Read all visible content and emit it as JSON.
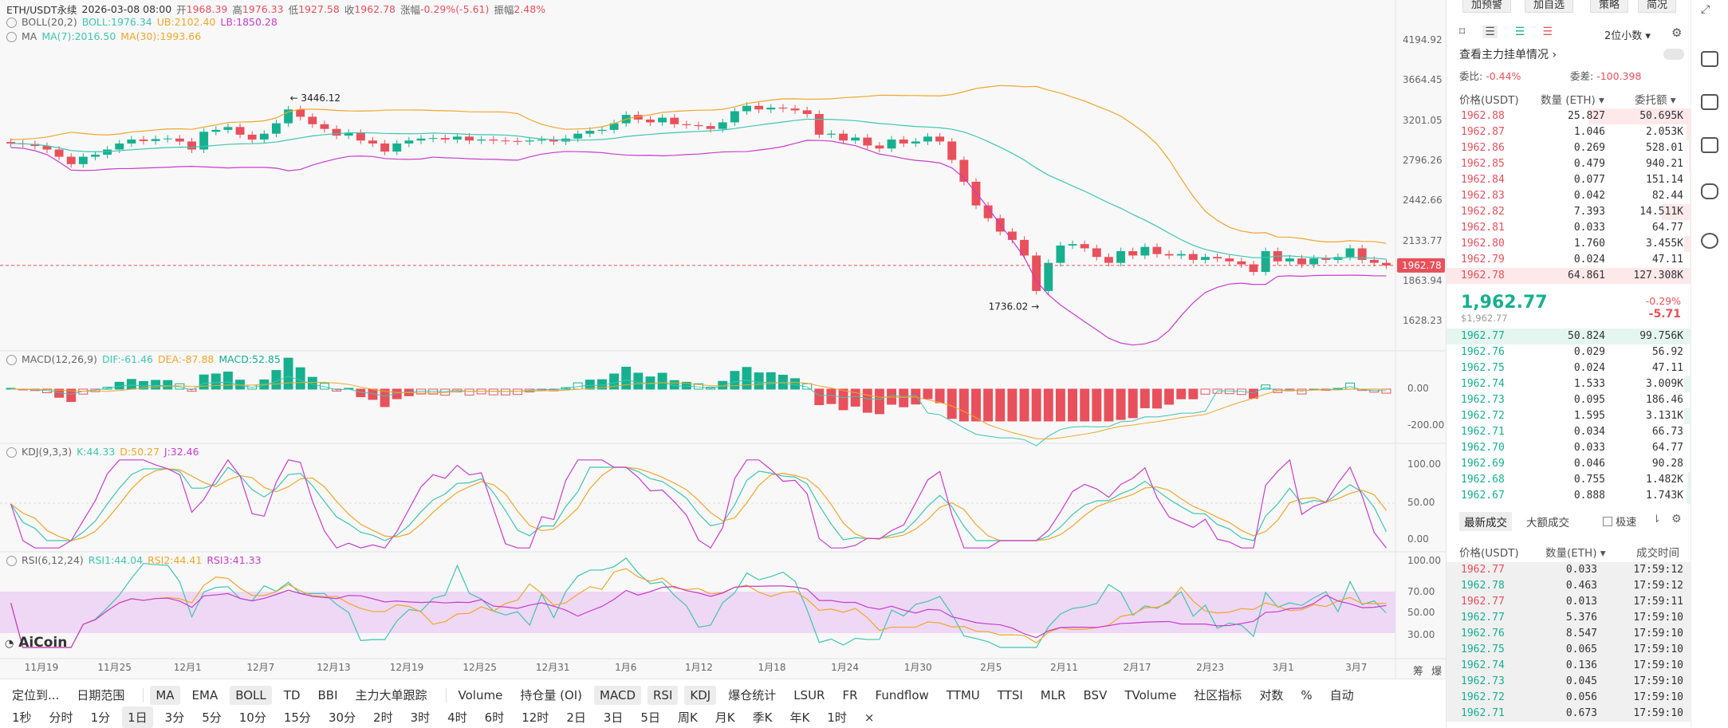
{
  "header": {
    "symbol": "ETH/USDT永续",
    "datetime": "2026-03-08 08:00",
    "open_label": "开",
    "open": "1968.39",
    "high_label": "高",
    "high": "1976.33",
    "low_label": "低",
    "low": "1927.58",
    "close_label": "收",
    "close": "1962.78",
    "change_label": "涨幅",
    "change": "-0.29%(-5.61)",
    "amp_label": "振幅",
    "amp": "2.48%"
  },
  "boll": {
    "name": "BOLL(20,2)",
    "mid": "BOLL:1976.34",
    "ub": "UB:2102.40",
    "lb": "LB:1850.28"
  },
  "ma": {
    "name": "MA",
    "ma7": "MA(7):2016.50",
    "ma30": "MA(30):1993.66"
  },
  "macd": {
    "name": "MACD(12,26,9)",
    "dif": "DIF:-61.46",
    "dea": "DEA:-87.88",
    "macd": "MACD:52.85"
  },
  "kdj": {
    "name": "KDJ(9,3,3)",
    "k": "K:44.33",
    "d": "D:50.27",
    "j": "J:32.46"
  },
  "rsi": {
    "name": "RSI(6,12,24)",
    "r1": "RSI1:44.04",
    "r2": "RSI2:44.41",
    "r3": "RSI3:41.33"
  },
  "annotations": {
    "high_mark": "← 3446.12",
    "low_mark": "1736.02 →",
    "current_price": "1962.78"
  },
  "price_axis": [
    "4194.92",
    "3664.45",
    "3201.05",
    "2796.26",
    "2442.66",
    "2133.77",
    "1863.94",
    "1628.23"
  ],
  "macd_axis": [
    "0.00",
    "-200.00"
  ],
  "kdj_axis": [
    "100.00",
    "50.00",
    "0.00"
  ],
  "rsi_axis": [
    "100.00",
    "70.00",
    "50.00",
    "30.00"
  ],
  "date_axis": [
    "11月19",
    "11月25",
    "12月1",
    "12月7",
    "12月13",
    "12月19",
    "12月25",
    "12月31",
    "1月6",
    "1月12",
    "1月18",
    "1月24",
    "1月30",
    "2月5",
    "2月11",
    "2月17",
    "2月23",
    "3月1",
    "3月7"
  ],
  "axis_toggles": {
    "log": "筹",
    "explode": "爆"
  },
  "logo": "AiCoin",
  "toolbar": {
    "row1": [
      "定位到...",
      "日期范围",
      "MA",
      "EMA",
      "BOLL",
      "TD",
      "BBI",
      "主力大单跟踪",
      "Volume",
      "持仓量 (OI)",
      "MACD",
      "RSI",
      "KDJ",
      "爆仓统计",
      "LSUR",
      "FR",
      "Fundflow",
      "TTMU",
      "TTSI",
      "MLR",
      "BSV",
      "TVolume",
      "社区指标",
      "对数",
      "%",
      "自动"
    ],
    "row1_active": [
      "MA",
      "BOLL",
      "MACD",
      "RSI",
      "KDJ"
    ],
    "row2": [
      "1秒",
      "分时",
      "1分",
      "1日",
      "3分",
      "5分",
      "10分",
      "15分",
      "30分",
      "2时",
      "3时",
      "4时",
      "6时",
      "12时",
      "2日",
      "3日",
      "5日",
      "周K",
      "月K",
      "季K",
      "年K",
      "1时",
      "×"
    ],
    "row2_active": "1日"
  },
  "panel": {
    "top_buttons": [
      "加预警",
      "加自选",
      "策略",
      "简况"
    ],
    "decimals": "2位小数",
    "main_orders": "查看主力挂单情况 ›",
    "ratio_label": "委比:",
    "ratio": "-0.44%",
    "diff_label": "委差:",
    "diff": "-100.398",
    "col_price": "价格(USDT)",
    "col_qty": "数量 (ETH) ▾",
    "col_total": "委托额 ▾",
    "asks": [
      {
        "p": "1962.88",
        "q": "25.827",
        "t": "50.695K",
        "w": 0.42
      },
      {
        "p": "1962.87",
        "q": "1.046",
        "t": "2.053K",
        "w": 0.02
      },
      {
        "p": "1962.86",
        "q": "0.269",
        "t": "528.01",
        "w": 0.01
      },
      {
        "p": "1962.85",
        "q": "0.479",
        "t": "940.21",
        "w": 0.01
      },
      {
        "p": "1962.84",
        "q": "0.077",
        "t": "151.14",
        "w": 0.005
      },
      {
        "p": "1962.83",
        "q": "0.042",
        "t": "82.44",
        "w": 0.005
      },
      {
        "p": "1962.82",
        "q": "7.393",
        "t": "14.511K",
        "w": 0.12
      },
      {
        "p": "1962.81",
        "q": "0.033",
        "t": "64.77",
        "w": 0.005
      },
      {
        "p": "1962.80",
        "q": "1.760",
        "t": "3.455K",
        "w": 0.03
      },
      {
        "p": "1962.79",
        "q": "0.024",
        "t": "47.11",
        "w": 0.005
      },
      {
        "p": "1962.78",
        "q": "64.861",
        "t": "127.308K",
        "w": 1.0
      }
    ],
    "last_price": "1,962.77",
    "last_price_usd": "$1,962.77",
    "last_change_pct": "-0.29%",
    "last_change": "-5.71",
    "bids": [
      {
        "p": "1962.77",
        "q": "50.824",
        "t": "99.756K",
        "w": 1.0
      },
      {
        "p": "1962.76",
        "q": "0.029",
        "t": "56.92",
        "w": 0.005
      },
      {
        "p": "1962.75",
        "q": "0.024",
        "t": "47.11",
        "w": 0.005
      },
      {
        "p": "1962.74",
        "q": "1.533",
        "t": "3.009K",
        "w": 0.03
      },
      {
        "p": "1962.73",
        "q": "0.095",
        "t": "186.46",
        "w": 0.005
      },
      {
        "p": "1962.72",
        "q": "1.595",
        "t": "3.131K",
        "w": 0.03
      },
      {
        "p": "1962.71",
        "q": "0.034",
        "t": "66.73",
        "w": 0.005
      },
      {
        "p": "1962.70",
        "q": "0.033",
        "t": "64.77",
        "w": 0.005
      },
      {
        "p": "1962.69",
        "q": "0.046",
        "t": "90.28",
        "w": 0.005
      },
      {
        "p": "1962.68",
        "q": "0.755",
        "t": "1.482K",
        "w": 0.015
      },
      {
        "p": "1962.67",
        "q": "0.888",
        "t": "1.743K",
        "w": 0.018
      }
    ],
    "trade_tabs": [
      "最新成交",
      "大额成交"
    ],
    "fast_label": "极速",
    "trade_cols": [
      "价格(USDT)",
      "数量(ETH) ▾",
      "成交时间"
    ],
    "trades": [
      {
        "p": "1962.77",
        "q": "0.033",
        "t": "17:59:12",
        "s": "sell"
      },
      {
        "p": "1962.78",
        "q": "0.463",
        "t": "17:59:12",
        "s": "buy"
      },
      {
        "p": "1962.77",
        "q": "0.013",
        "t": "17:59:11",
        "s": "sell"
      },
      {
        "p": "1962.77",
        "q": "5.376",
        "t": "17:59:10",
        "s": "buy"
      },
      {
        "p": "1962.76",
        "q": "8.547",
        "t": "17:59:10",
        "s": "buy"
      },
      {
        "p": "1962.75",
        "q": "0.065",
        "t": "17:59:10",
        "s": "buy"
      },
      {
        "p": "1962.74",
        "q": "0.136",
        "t": "17:59:10",
        "s": "buy"
      },
      {
        "p": "1962.73",
        "q": "0.045",
        "t": "17:59:10",
        "s": "buy"
      },
      {
        "p": "1962.72",
        "q": "0.056",
        "t": "17:59:10",
        "s": "buy"
      },
      {
        "p": "1962.71",
        "q": "0.673",
        "t": "17:59:10",
        "s": "buy"
      }
    ]
  },
  "colors": {
    "rise": "#e8505b",
    "fall": "#16b08f",
    "mid": "#3ec6b0",
    "ub": "#f0a62c",
    "lb": "#c83ccf",
    "price_tag": "#e8505b"
  },
  "chart_data": {
    "type": "candlestick",
    "interval": "1日",
    "close": [
      2960,
      2955,
      2935,
      2900,
      2830,
      2760,
      2830,
      2850,
      2900,
      2960,
      3000,
      2985,
      3005,
      3010,
      2980,
      2900,
      3080,
      3100,
      3130,
      3050,
      3000,
      3060,
      3170,
      3320,
      3240,
      3160,
      3110,
      3040,
      3070,
      2990,
      2960,
      2880,
      2960,
      2990,
      3010,
      3015,
      3000,
      3030,
      2990,
      3000,
      2990,
      2985,
      2980,
      2990,
      3000,
      2980,
      3010,
      3060,
      3090,
      3100,
      3170,
      3260,
      3210,
      3180,
      3230,
      3160,
      3150,
      3140,
      3110,
      3180,
      3300,
      3360,
      3320,
      3340,
      3330,
      3310,
      3270,
      3050,
      3060,
      2990,
      3020,
      2940,
      2910,
      3000,
      2960,
      2980,
      3030,
      2980,
      2800,
      2600,
      2400,
      2300,
      2200,
      2140,
      2030,
      1800,
      1980,
      2100,
      2110,
      2080,
      2020,
      1980,
      2060,
      2030,
      2090,
      2040,
      2030,
      2040,
      2000,
      2020,
      2010,
      1990,
      1970,
      1920,
      2060,
      1990,
      2010,
      1970,
      2010,
      2000,
      2020,
      2080,
      2000,
      1980,
      1962.78
    ],
    "boll_mid_last": 1976.34,
    "boll_ub_last": 2102.4,
    "boll_lb_last": 1850.28,
    "ma7_last": 2016.5,
    "ma30_last": 1993.66,
    "high": 3446.12,
    "low": 1736.02
  }
}
